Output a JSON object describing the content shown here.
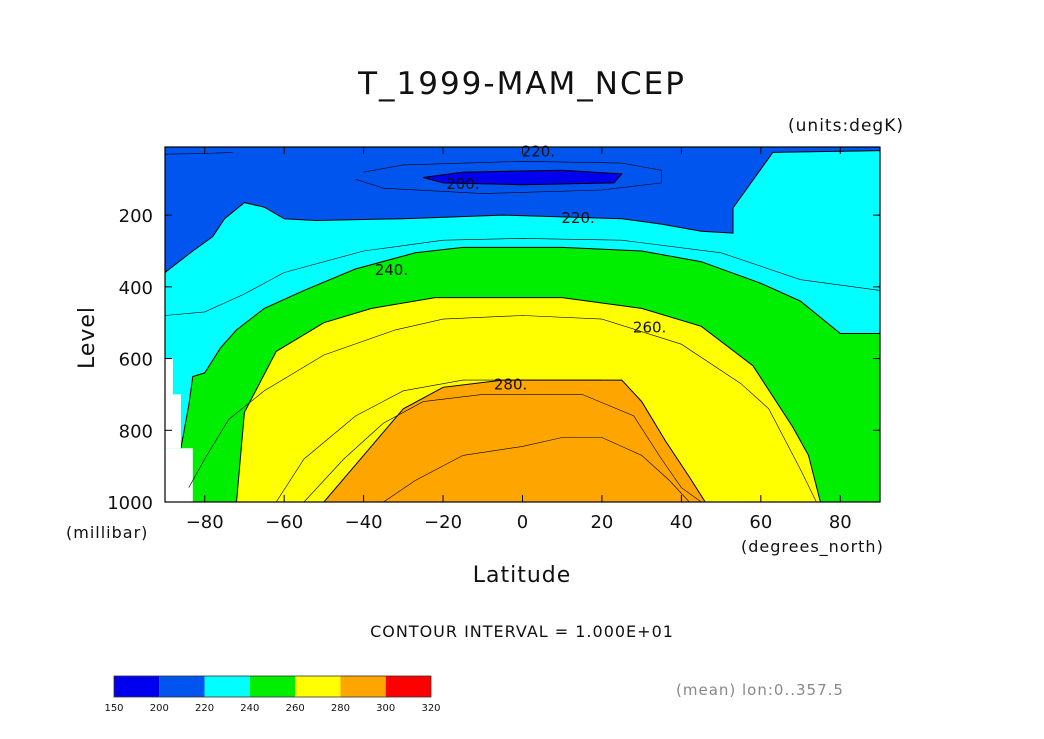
{
  "chart_data": {
    "type": "heatmap",
    "title": "T_1999-MAM_NCEP",
    "units_label": "(units:degK)",
    "ylabel": "Level",
    "ylabel_units": "(millibar)",
    "xlabel": "Latitude",
    "xlabel_units": "(degrees_north)",
    "xlim": [
      -90,
      90
    ],
    "ylim": [
      1000,
      10
    ],
    "x_ticks": [
      -80,
      -60,
      -40,
      -20,
      0,
      20,
      40,
      60,
      80
    ],
    "y_ticks": [
      200,
      400,
      600,
      800,
      1000
    ],
    "contour_interval_text": "CONTOUR INTERVAL = 1.000E+01",
    "footnote": "(mean) lon:0..357.5",
    "contour_labels": [
      {
        "text": "220.",
        "x": 4,
        "y": 20
      },
      {
        "text": "200.",
        "x": -15,
        "y": 110
      },
      {
        "text": "220.",
        "x": 14,
        "y": 205
      },
      {
        "text": "240.",
        "x": -33,
        "y": 350
      },
      {
        "text": "260.",
        "x": 32,
        "y": 510
      },
      {
        "text": "280.",
        "x": -3,
        "y": 670
      }
    ],
    "bands": [
      {
        "name": "150-200",
        "color": "#0000ee"
      },
      {
        "name": "200-220",
        "color": "#0055ee"
      },
      {
        "name": "220-240",
        "color": "#00ffff"
      },
      {
        "name": "240-260",
        "color": "#00ee00"
      },
      {
        "name": "260-280",
        "color": "#ffff00"
      },
      {
        "name": "280-300",
        "color": "#ffa500"
      },
      {
        "name": "300-320",
        "color": "#ff0000"
      }
    ],
    "fill_regions": [
      {
        "band": 1,
        "points": [
          [
            -90,
            10
          ],
          [
            90,
            10
          ],
          [
            90,
            20
          ],
          [
            63,
            25
          ],
          [
            53,
            180
          ],
          [
            53,
            250
          ],
          [
            45,
            245
          ],
          [
            35,
            225
          ],
          [
            25,
            210
          ],
          [
            10,
            205
          ],
          [
            -5,
            200
          ],
          [
            -30,
            210
          ],
          [
            -52,
            215
          ],
          [
            -60,
            210
          ],
          [
            -65,
            178
          ],
          [
            -70,
            165
          ],
          [
            -75,
            210
          ],
          [
            -78,
            260
          ],
          [
            -83,
            300
          ],
          [
            -90,
            360
          ]
        ]
      },
      {
        "band": 0,
        "points": [
          [
            -25,
            95
          ],
          [
            -15,
            80
          ],
          [
            10,
            75
          ],
          [
            25,
            85
          ],
          [
            23,
            110
          ],
          [
            0,
            115
          ],
          [
            -20,
            110
          ]
        ]
      },
      {
        "band": 3,
        "points": [
          [
            -86,
            1000
          ],
          [
            -86,
            850
          ],
          [
            -84,
            730
          ],
          [
            -83,
            650
          ],
          [
            -80,
            640
          ],
          [
            -76,
            570
          ],
          [
            -72,
            520
          ],
          [
            -65,
            460
          ],
          [
            -55,
            410
          ],
          [
            -42,
            350
          ],
          [
            -27,
            305
          ],
          [
            -15,
            290
          ],
          [
            10,
            290
          ],
          [
            30,
            300
          ],
          [
            45,
            330
          ],
          [
            60,
            390
          ],
          [
            70,
            440
          ],
          [
            80,
            530
          ],
          [
            90,
            530
          ],
          [
            90,
            1000
          ]
        ]
      },
      {
        "band": 4,
        "points": [
          [
            -72,
            1000
          ],
          [
            -70,
            750
          ],
          [
            -62,
            580
          ],
          [
            -50,
            500
          ],
          [
            -38,
            460
          ],
          [
            -22,
            430
          ],
          [
            10,
            430
          ],
          [
            30,
            460
          ],
          [
            45,
            510
          ],
          [
            58,
            620
          ],
          [
            68,
            790
          ],
          [
            72,
            870
          ],
          [
            75,
            1000
          ]
        ]
      },
      {
        "band": 5,
        "points": [
          [
            -50,
            1000
          ],
          [
            -40,
            870
          ],
          [
            -30,
            740
          ],
          [
            -20,
            680
          ],
          [
            -5,
            660
          ],
          [
            25,
            660
          ],
          [
            30,
            720
          ],
          [
            36,
            830
          ],
          [
            42,
            930
          ],
          [
            46,
            1000
          ]
        ]
      }
    ],
    "white_patches": [
      {
        "points": [
          [
            -90,
            600
          ],
          [
            -88,
            600
          ],
          [
            -88,
            700
          ],
          [
            -90,
            700
          ]
        ]
      },
      {
        "points": [
          [
            -90,
            700
          ],
          [
            -86,
            700
          ],
          [
            -86,
            850
          ],
          [
            -90,
            850
          ]
        ]
      },
      {
        "points": [
          [
            -90,
            850
          ],
          [
            -83,
            850
          ],
          [
            -83,
            1000
          ],
          [
            -90,
            1000
          ]
        ]
      }
    ],
    "thin_contours": [
      [
        [
          -90,
          30
        ],
        [
          -80,
          28
        ],
        [
          -73,
          25
        ]
      ],
      [
        [
          -40,
          80
        ],
        [
          -30,
          60
        ],
        [
          0,
          50
        ],
        [
          25,
          55
        ],
        [
          35,
          75
        ],
        [
          35,
          110
        ],
        [
          20,
          130
        ],
        [
          -10,
          140
        ],
        [
          -35,
          125
        ],
        [
          -42,
          100
        ]
      ],
      [
        [
          -90,
          480
        ],
        [
          -80,
          470
        ],
        [
          -70,
          420
        ],
        [
          -60,
          360
        ],
        [
          -40,
          300
        ],
        [
          -20,
          270
        ],
        [
          0,
          265
        ],
        [
          25,
          270
        ],
        [
          50,
          305
        ],
        [
          70,
          380
        ],
        [
          90,
          410
        ]
      ],
      [
        [
          -84,
          960
        ],
        [
          -80,
          880
        ],
        [
          -74,
          770
        ],
        [
          -65,
          690
        ],
        [
          -50,
          590
        ],
        [
          -32,
          520
        ],
        [
          -20,
          490
        ],
        [
          0,
          480
        ],
        [
          20,
          490
        ],
        [
          40,
          560
        ],
        [
          55,
          670
        ],
        [
          62,
          740
        ],
        [
          70,
          910
        ],
        [
          74,
          1000
        ]
      ],
      [
        [
          -62,
          1000
        ],
        [
          -55,
          880
        ],
        [
          -42,
          760
        ],
        [
          -30,
          690
        ],
        [
          -15,
          660
        ],
        [
          20,
          660
        ]
      ],
      [
        [
          -55,
          1000
        ],
        [
          -45,
          880
        ],
        [
          -35,
          780
        ],
        [
          -25,
          720
        ],
        [
          -10,
          700
        ],
        [
          15,
          700
        ],
        [
          28,
          760
        ],
        [
          35,
          880
        ],
        [
          40,
          960
        ],
        [
          45,
          1000
        ]
      ],
      [
        [
          -35,
          1000
        ],
        [
          -27,
          940
        ],
        [
          -15,
          870
        ],
        [
          0,
          845
        ],
        [
          10,
          820
        ],
        [
          20,
          820
        ],
        [
          30,
          870
        ],
        [
          37,
          940
        ],
        [
          42,
          1000
        ]
      ]
    ],
    "colorbar": {
      "labels": [
        "150",
        "200",
        "220",
        "240",
        "260",
        "280",
        "300",
        "320"
      ],
      "colors": [
        "#0000ee",
        "#0055ee",
        "#00ffff",
        "#00ee00",
        "#ffff00",
        "#ffa500",
        "#ff0000"
      ]
    }
  }
}
